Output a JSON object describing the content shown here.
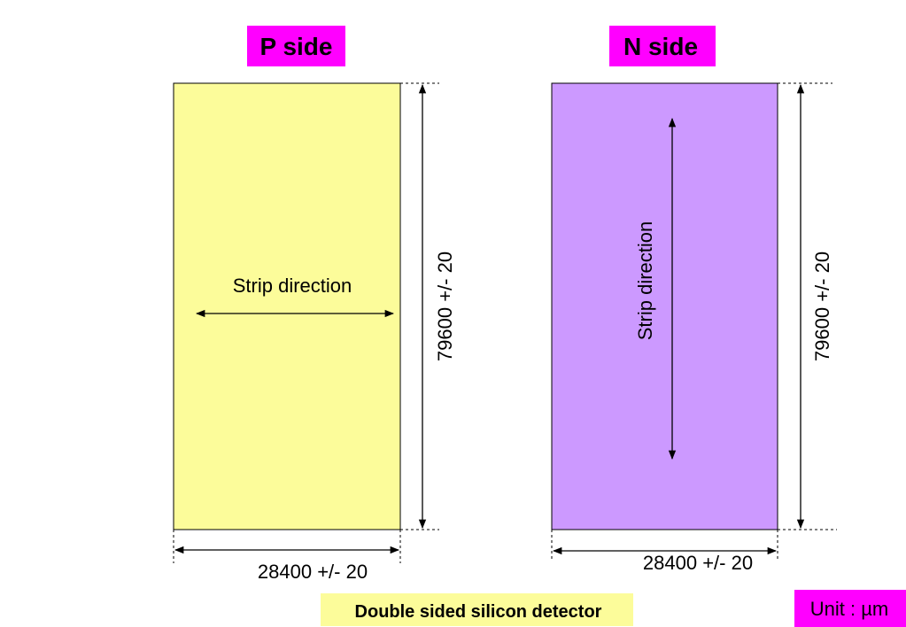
{
  "colors": {
    "p_side_fill": "#FCFC9A",
    "n_side_fill": "#CC99FF",
    "label_bg": "#FF00FF",
    "caption_bg": "#FCFC9A",
    "line": "#000000",
    "text": "#000000"
  },
  "p_side": {
    "title": "P side",
    "strip_label": "Strip direction",
    "height_label": "79600 +/- 20",
    "width_label": "28400 +/- 20"
  },
  "n_side": {
    "title": "N side",
    "strip_label": "Strip direction",
    "height_label": "79600 +/- 20",
    "width_label": "28400 +/- 20"
  },
  "caption": "Double sided silicon detector",
  "unit": "Unit : µm"
}
